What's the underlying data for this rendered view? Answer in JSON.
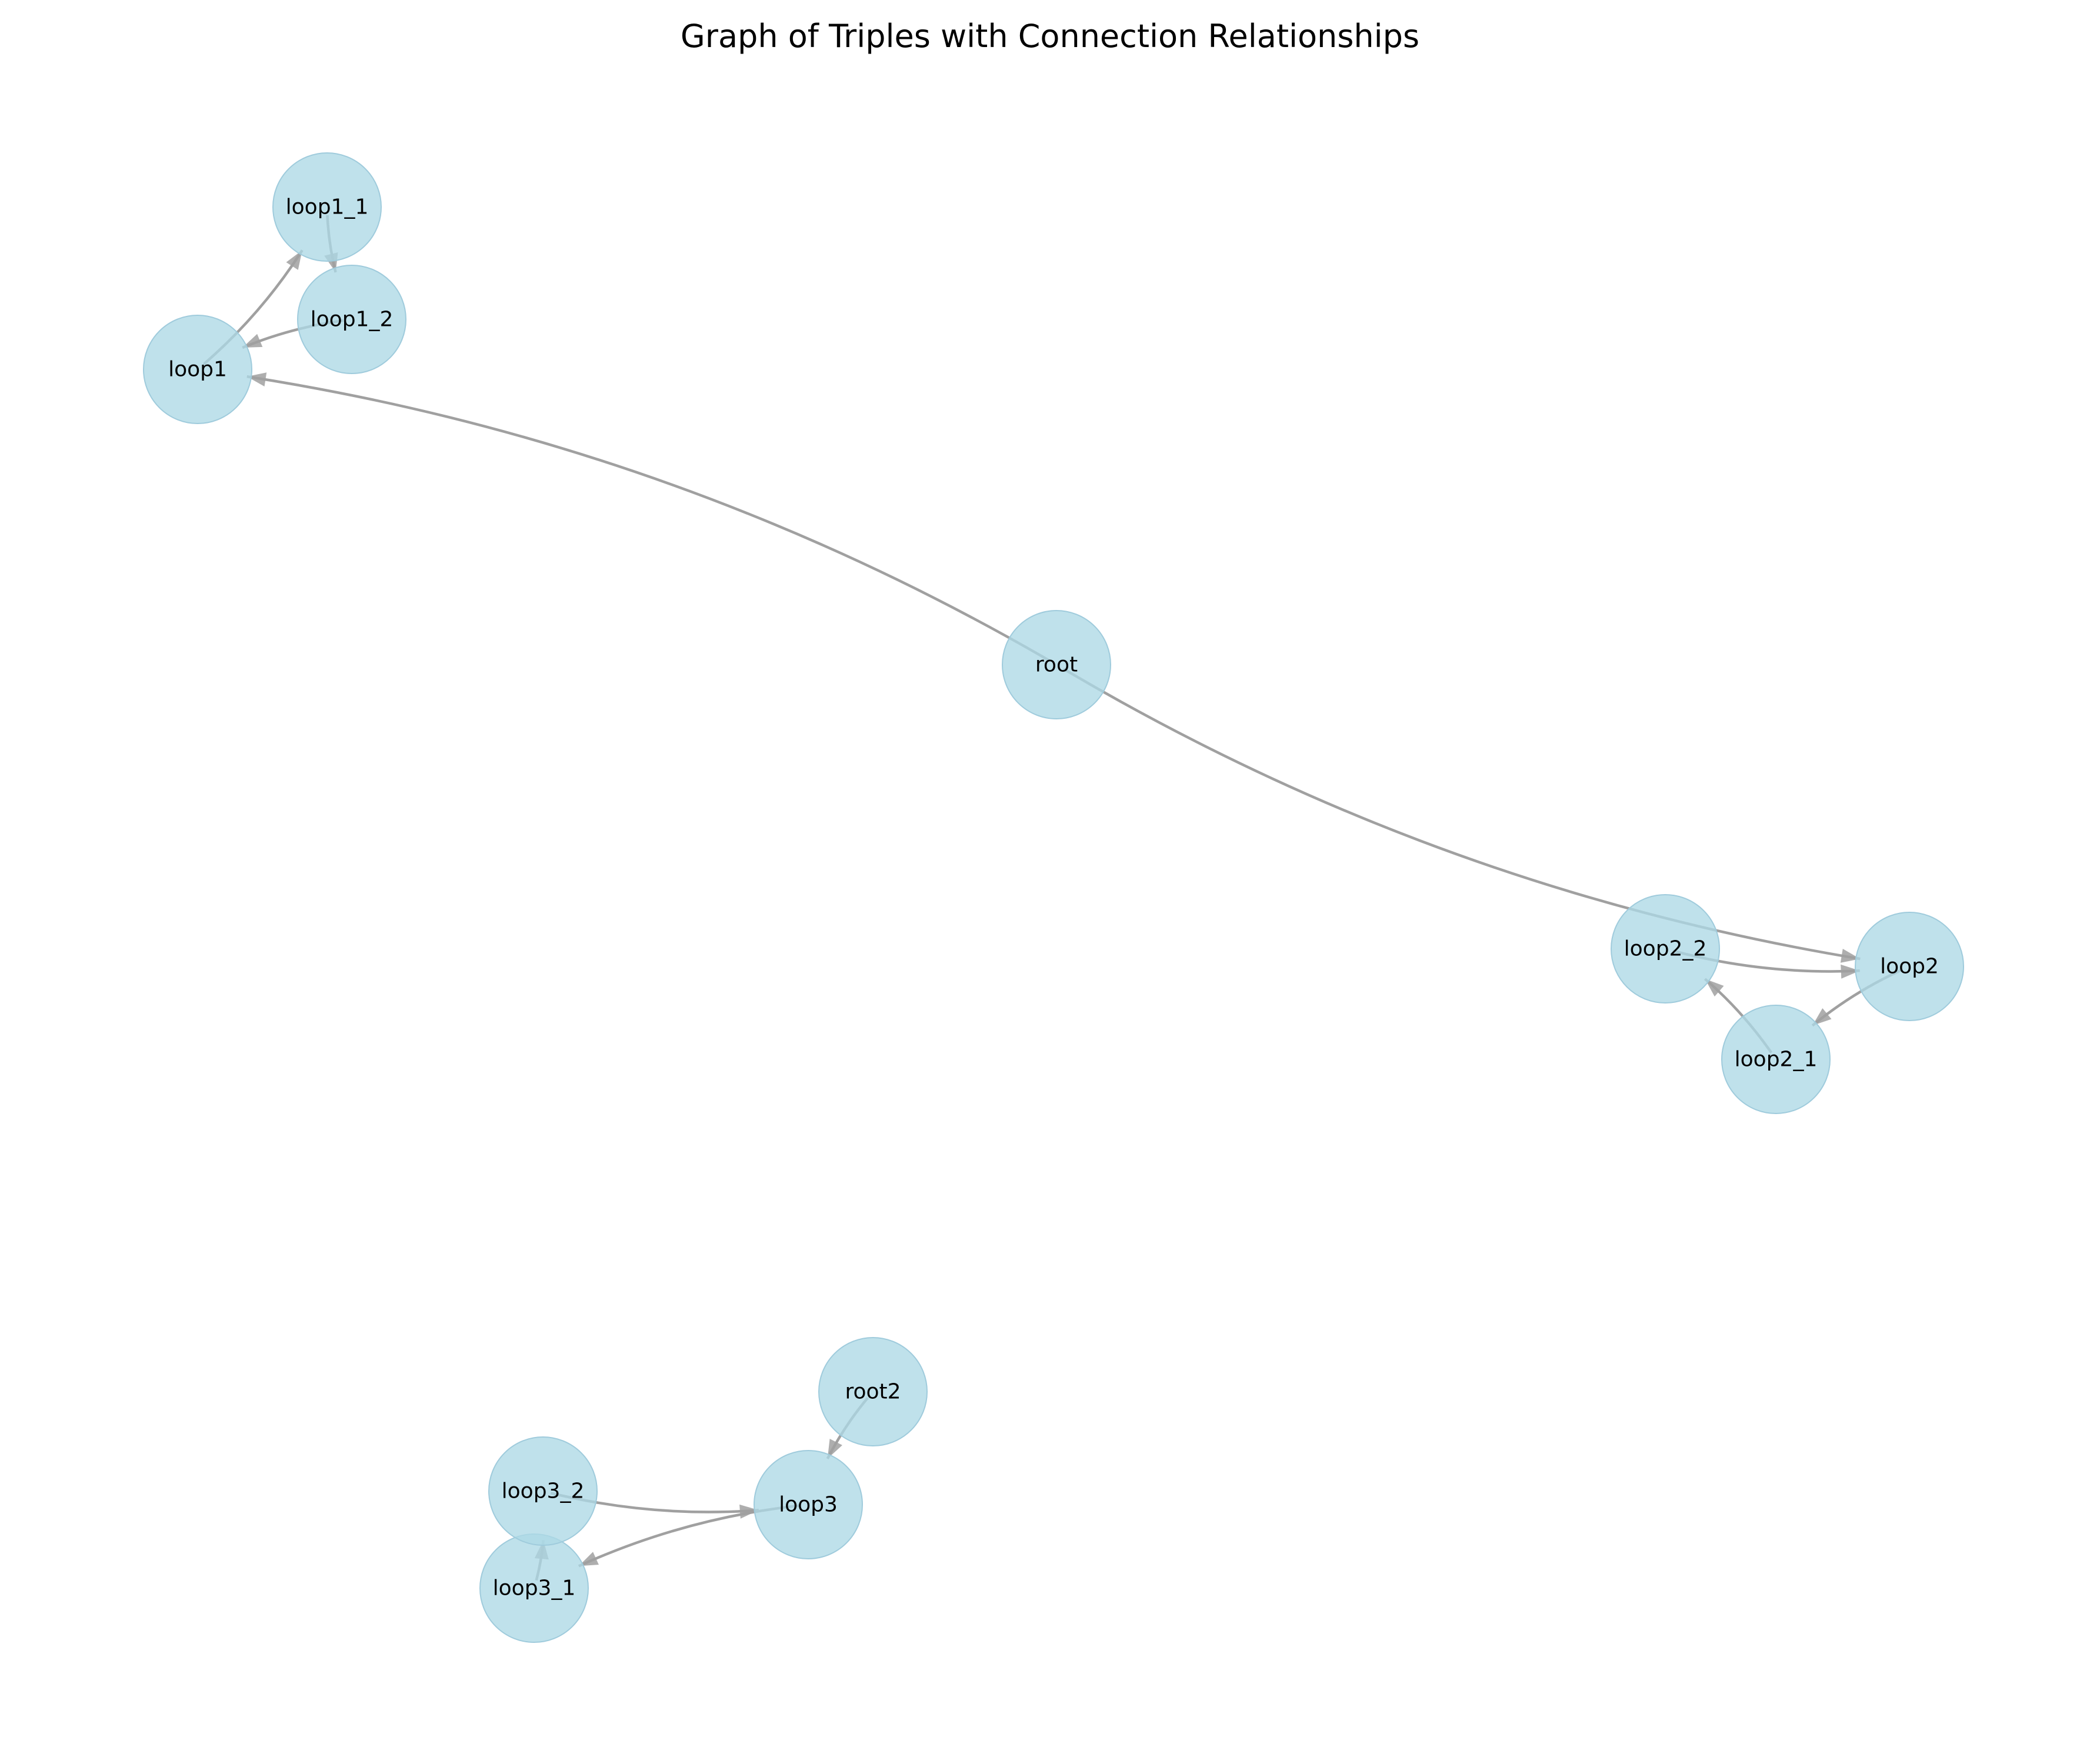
{
  "title": "Graph of Triples with Connection Relationships",
  "colors": {
    "node_fill": "#add8e6",
    "edge": "#a0a0a0",
    "text": "#000000",
    "background": "#ffffff"
  },
  "graph": {
    "nodes": [
      {
        "id": "root",
        "label": "root"
      },
      {
        "id": "loop1",
        "label": "loop1"
      },
      {
        "id": "loop1_1",
        "label": "loop1_1"
      },
      {
        "id": "loop1_2",
        "label": "loop1_2"
      },
      {
        "id": "loop2",
        "label": "loop2"
      },
      {
        "id": "loop2_1",
        "label": "loop2_1"
      },
      {
        "id": "loop2_2",
        "label": "loop2_2"
      },
      {
        "id": "root2",
        "label": "root2"
      },
      {
        "id": "loop3",
        "label": "loop3"
      },
      {
        "id": "loop3_1",
        "label": "loop3_1"
      },
      {
        "id": "loop3_2",
        "label": "loop3_2"
      }
    ],
    "edges": [
      {
        "source": "root",
        "target": "loop1"
      },
      {
        "source": "loop1",
        "target": "loop1_1"
      },
      {
        "source": "loop1_1",
        "target": "loop1_2"
      },
      {
        "source": "loop1_2",
        "target": "loop1"
      },
      {
        "source": "root",
        "target": "loop2"
      },
      {
        "source": "loop2",
        "target": "loop2_1"
      },
      {
        "source": "loop2_1",
        "target": "loop2_2"
      },
      {
        "source": "loop2_2",
        "target": "loop2"
      },
      {
        "source": "root2",
        "target": "loop3"
      },
      {
        "source": "loop3",
        "target": "loop3_1"
      },
      {
        "source": "loop3_1",
        "target": "loop3_2"
      },
      {
        "source": "loop3_2",
        "target": "loop3"
      }
    ]
  }
}
